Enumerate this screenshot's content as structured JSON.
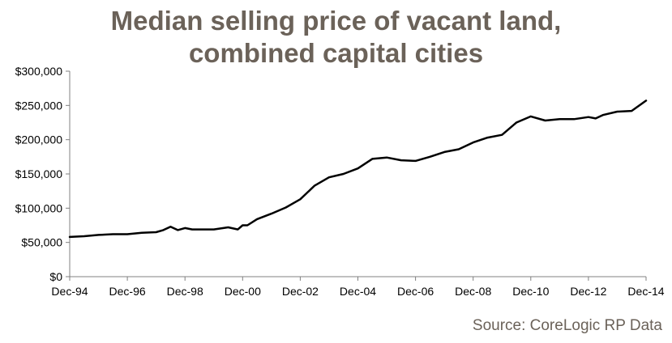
{
  "chart_data": {
    "type": "line",
    "title_line1": "Median selling price of vacant land,",
    "title_line2": "combined capital cities",
    "xlabel": "",
    "ylabel": "",
    "ylim": [
      0,
      300000
    ],
    "xlim": [
      0,
      240
    ],
    "x_tick_labels": [
      "Dec-94",
      "Dec-96",
      "Dec-98",
      "Dec-00",
      "Dec-02",
      "Dec-04",
      "Dec-06",
      "Dec-08",
      "Dec-10",
      "Dec-12",
      "Dec-14"
    ],
    "y_tick_labels": [
      "$0",
      "$50,000",
      "$100,000",
      "$150,000",
      "$200,000",
      "$250,000",
      "$300,000"
    ],
    "y_tick_values": [
      0,
      50000,
      100000,
      150000,
      200000,
      250000,
      300000
    ],
    "series": [
      {
        "name": "Median selling price",
        "color": "#000000",
        "x_months_since_dec94": [
          0,
          6,
          12,
          18,
          24,
          30,
          36,
          39,
          42,
          45,
          48,
          51,
          54,
          60,
          66,
          70,
          72,
          74,
          78,
          84,
          90,
          96,
          102,
          108,
          114,
          120,
          126,
          132,
          138,
          144,
          150,
          156,
          162,
          168,
          174,
          180,
          186,
          192,
          198,
          204,
          210,
          216,
          219,
          222,
          228,
          234,
          240
        ],
        "values": [
          58000,
          59000,
          61000,
          62000,
          62000,
          64000,
          65000,
          68000,
          73000,
          68000,
          71000,
          69000,
          69000,
          69000,
          72000,
          69000,
          75000,
          75000,
          84000,
          92000,
          101000,
          113000,
          133000,
          145000,
          150000,
          158000,
          172000,
          174000,
          170000,
          169000,
          175000,
          182000,
          186000,
          196000,
          203000,
          207000,
          225000,
          234000,
          228000,
          230000,
          230000,
          233000,
          231000,
          236000,
          241000,
          242000,
          257000
        ]
      }
    ]
  },
  "source_text": "Source: CoreLogic RP Data"
}
